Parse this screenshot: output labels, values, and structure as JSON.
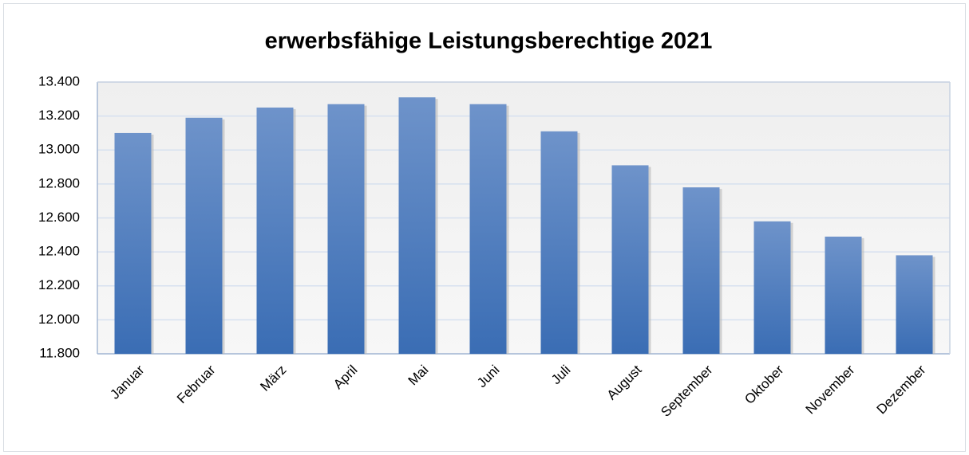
{
  "chart_data": {
    "type": "bar",
    "title": "erwerbsfähige Leistungsberechtige 2021",
    "categories": [
      "Januar",
      "Februar",
      "März",
      "April",
      "Mai",
      "Juni",
      "Juli",
      "August",
      "September",
      "Oktober",
      "November",
      "Dezember"
    ],
    "values": [
      13100,
      13190,
      13250,
      13270,
      13310,
      13270,
      13110,
      12910,
      12780,
      12580,
      12490,
      12380
    ],
    "color": "#4a7cc0",
    "ylim": [
      11800,
      13400
    ],
    "yticks": [
      {
        "value": 11800,
        "label": "11.800"
      },
      {
        "value": 12000,
        "label": "12.000"
      },
      {
        "value": 12200,
        "label": "12.200"
      },
      {
        "value": 12400,
        "label": "12.400"
      },
      {
        "value": 12600,
        "label": "12.600"
      },
      {
        "value": 12800,
        "label": "12.800"
      },
      {
        "value": 13000,
        "label": "13.000"
      },
      {
        "value": 13200,
        "label": "13.200"
      },
      {
        "value": 13400,
        "label": "13.400"
      }
    ],
    "grid": true
  }
}
